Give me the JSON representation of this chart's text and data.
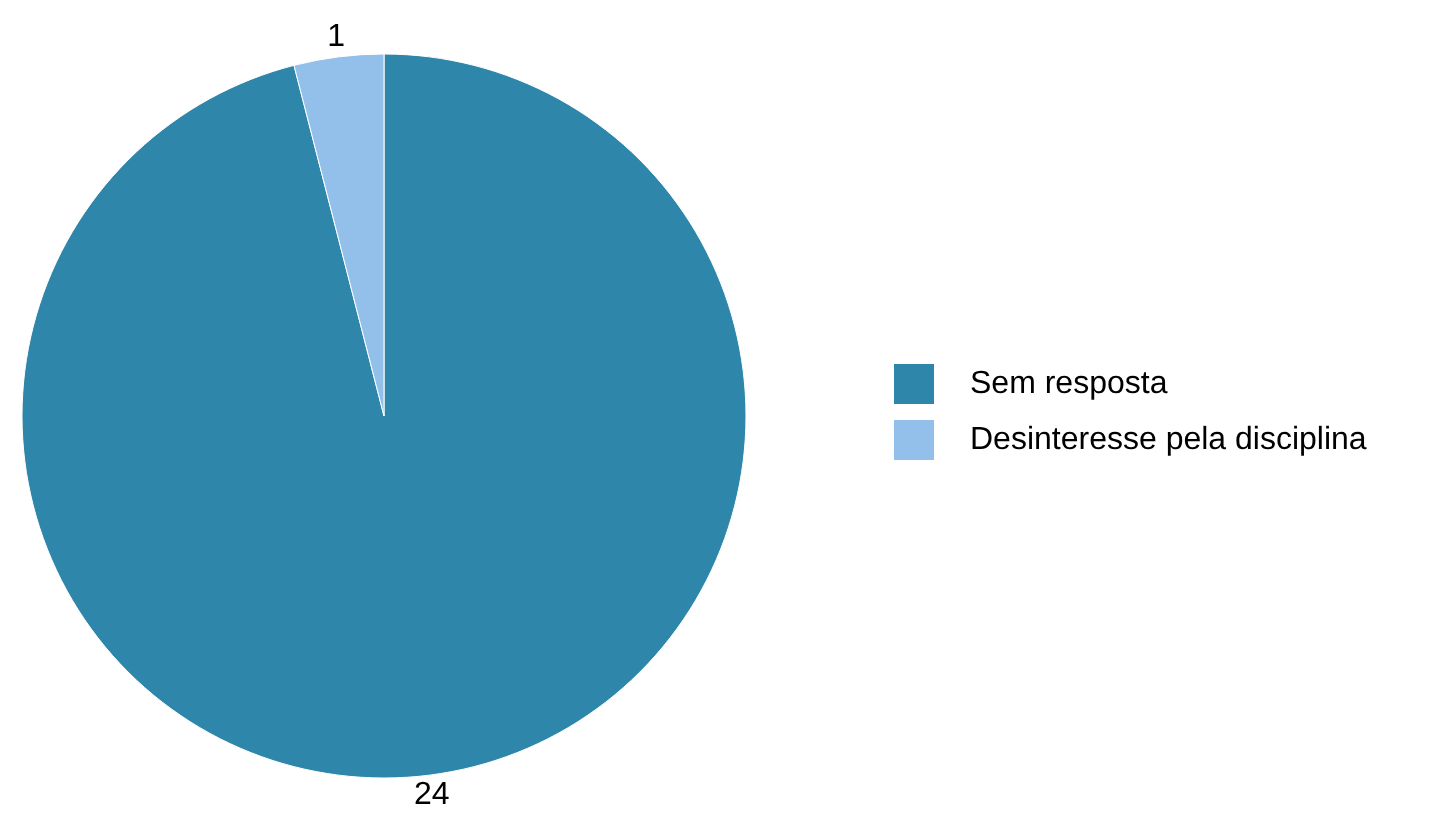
{
  "chart_data": {
    "type": "pie",
    "categories": [
      "Sem resposta",
      "Desinteresse pela disciplina"
    ],
    "values": [
      24,
      1
    ],
    "colors": [
      "#2e87aa",
      "#93bfeb"
    ],
    "data_labels": true,
    "legend": "right"
  }
}
